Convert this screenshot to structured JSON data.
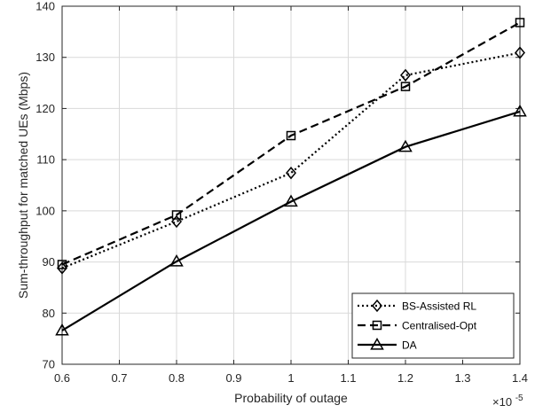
{
  "chart_data": {
    "type": "line",
    "xlabel": "Probability of outage",
    "ylabel": "Sum-throughput for matched UEs (Mbps)",
    "x_multiplier": {
      "base": "×10",
      "exponent": "-5"
    },
    "x": [
      0.6,
      0.8,
      1.0,
      1.2,
      1.4
    ],
    "xlim": [
      0.6,
      1.4
    ],
    "ylim": [
      70,
      140
    ],
    "xticks": [
      "0.6",
      "0.7",
      "0.8",
      "0.9",
      "1",
      "1.1",
      "1.2",
      "1.3",
      "1.4"
    ],
    "yticks": [
      "70",
      "80",
      "90",
      "100",
      "110",
      "120",
      "130",
      "140"
    ],
    "grid": true,
    "legend_position": "bottom-right",
    "series": [
      {
        "name": "BS-Assisted RL",
        "values": [
          88.8,
          97.9,
          107.4,
          126.5,
          130.9
        ],
        "line_style": "dotted",
        "marker": "diamond",
        "color": "#000000"
      },
      {
        "name": "Centralised-Opt",
        "values": [
          89.5,
          99.2,
          114.7,
          124.3,
          136.8
        ],
        "line_style": "dashed",
        "marker": "square",
        "color": "#000000"
      },
      {
        "name": "DA",
        "values": [
          76.6,
          90.1,
          101.8,
          112.5,
          119.4
        ],
        "line_style": "solid",
        "marker": "triangle",
        "color": "#000000"
      }
    ]
  }
}
